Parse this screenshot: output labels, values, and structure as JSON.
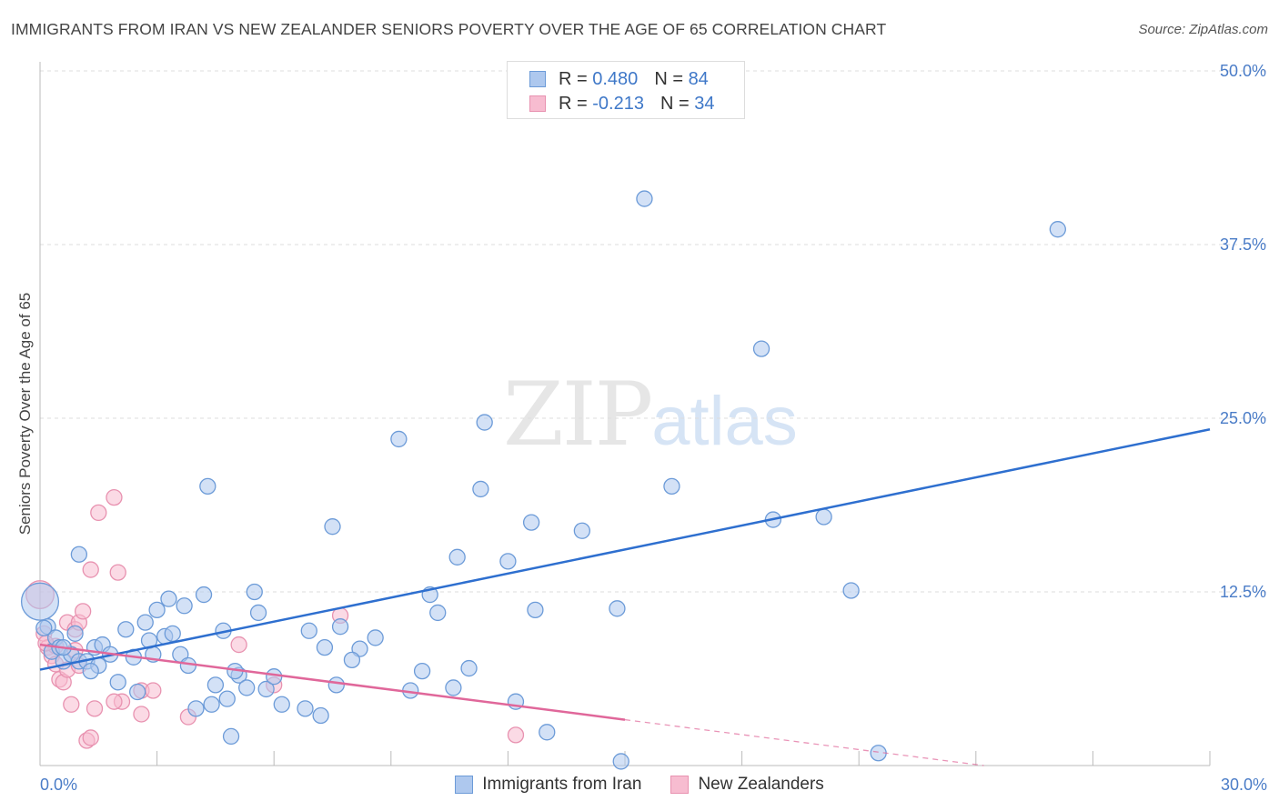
{
  "title": "IMMIGRANTS FROM IRAN VS NEW ZEALANDER SENIORS POVERTY OVER THE AGE OF 65 CORRELATION CHART",
  "source": "Source: ZipAtlas.com",
  "watermark": {
    "part1": "ZIP",
    "part2": "atlas"
  },
  "legend": {
    "rows": [
      {
        "r_label": "R =",
        "r_value": "0.480",
        "n_label": "N =",
        "n_value": "84",
        "fill": "#aec8ee",
        "stroke": "#6c9bd8"
      },
      {
        "r_label": "R =",
        "r_value": "-0.213",
        "n_label": "N =",
        "n_value": "34",
        "fill": "#f7bcd0",
        "stroke": "#e892b0"
      }
    ]
  },
  "colors": {
    "blue_fill": "rgba(174,200,238,0.55)",
    "blue_stroke": "#6c9bd8",
    "blue_line": "#2e6fcf",
    "pink_fill": "rgba(247,188,208,0.55)",
    "pink_stroke": "#e892b0",
    "pink_line": "#e0679a",
    "grid": "#dddddd",
    "tick_text": "#4a7cc7"
  },
  "chart_data": {
    "type": "scatter",
    "title": "IMMIGRANTS FROM IRAN VS NEW ZEALANDER SENIORS POVERTY OVER THE AGE OF 65 CORRELATION CHART",
    "xlabel": "",
    "ylabel": "Seniors Poverty Over the Age of 65",
    "xlim": [
      0,
      30
    ],
    "ylim": [
      0,
      50
    ],
    "x_tick_labels": [
      "0.0%",
      "30.0%"
    ],
    "y_ticks": [
      12.5,
      25.0,
      37.5,
      50.0
    ],
    "y_tick_labels": [
      "12.5%",
      "25.0%",
      "37.5%",
      "50.0%"
    ],
    "series": [
      {
        "name": "Immigrants from Iran",
        "r": 0.48,
        "n": 84,
        "trend": {
          "x0": 0,
          "y0": 6.9,
          "x1": 30,
          "y1": 24.2,
          "dashed_from": null
        },
        "points": [
          [
            0.0,
            11.8,
            2.4
          ],
          [
            0.2,
            10.0,
            1.0
          ],
          [
            0.3,
            8.2,
            1.0
          ],
          [
            0.4,
            9.2,
            1.0
          ],
          [
            0.5,
            8.5,
            1.0
          ],
          [
            0.6,
            7.5,
            1.0
          ],
          [
            0.8,
            8.0,
            1.0
          ],
          [
            0.9,
            9.5,
            1.0
          ],
          [
            1.0,
            7.5,
            1.0
          ],
          [
            1.2,
            7.5,
            1.0
          ],
          [
            1.4,
            8.5,
            1.0
          ],
          [
            1.5,
            7.2,
            1.0
          ],
          [
            1.6,
            8.7,
            1.0
          ],
          [
            1.8,
            8.0,
            1.0
          ],
          [
            1.0,
            15.2,
            1.0
          ],
          [
            2.0,
            6.0,
            1.0
          ],
          [
            2.2,
            9.8,
            1.0
          ],
          [
            2.5,
            5.3,
            1.0
          ],
          [
            2.7,
            10.3,
            1.0
          ],
          [
            2.9,
            8.0,
            1.0
          ],
          [
            3.0,
            11.2,
            1.0
          ],
          [
            3.2,
            9.3,
            1.0
          ],
          [
            3.4,
            9.5,
            1.0
          ],
          [
            3.6,
            8.0,
            1.0
          ],
          [
            3.8,
            7.2,
            1.0
          ],
          [
            4.0,
            4.1,
            1.0
          ],
          [
            4.2,
            12.3,
            1.0
          ],
          [
            4.4,
            4.4,
            1.0
          ],
          [
            4.5,
            5.8,
            1.0
          ],
          [
            4.7,
            9.7,
            1.0
          ],
          [
            4.8,
            4.8,
            1.0
          ],
          [
            4.9,
            2.1,
            1.0
          ],
          [
            5.1,
            6.5,
            1.0
          ],
          [
            5.3,
            5.6,
            1.0
          ],
          [
            5.5,
            12.5,
            1.0
          ],
          [
            5.6,
            11.0,
            1.0
          ],
          [
            4.3,
            20.1,
            1.0
          ],
          [
            6.2,
            4.4,
            1.0
          ],
          [
            6.8,
            4.1,
            1.0
          ],
          [
            6.9,
            9.7,
            1.0
          ],
          [
            7.2,
            3.6,
            1.0
          ],
          [
            7.3,
            8.5,
            1.0
          ],
          [
            7.6,
            5.8,
            1.0
          ],
          [
            7.7,
            10.0,
            1.0
          ],
          [
            8.2,
            8.4,
            1.0
          ],
          [
            7.5,
            17.2,
            1.0
          ],
          [
            8.6,
            9.2,
            1.0
          ],
          [
            9.2,
            23.5,
            1.0
          ],
          [
            9.5,
            5.4,
            1.0
          ],
          [
            10.0,
            12.3,
            1.0
          ],
          [
            10.2,
            11.0,
            1.0
          ],
          [
            10.6,
            5.6,
            1.0
          ],
          [
            10.7,
            15.0,
            1.0
          ],
          [
            11.0,
            7.0,
            1.0
          ],
          [
            11.3,
            19.9,
            1.0
          ],
          [
            11.4,
            24.7,
            1.0
          ],
          [
            12.0,
            14.7,
            1.0
          ],
          [
            12.6,
            17.5,
            1.0
          ],
          [
            12.7,
            11.2,
            1.0
          ],
          [
            13.0,
            2.4,
            1.0
          ],
          [
            13.9,
            16.9,
            1.0
          ],
          [
            14.9,
            0.3,
            1.0
          ],
          [
            14.8,
            11.3,
            1.0
          ],
          [
            15.5,
            40.8,
            1.0
          ],
          [
            16.2,
            20.1,
            1.0
          ],
          [
            18.5,
            30.0,
            1.0
          ],
          [
            18.8,
            17.7,
            1.0
          ],
          [
            20.1,
            17.9,
            1.0
          ],
          [
            20.8,
            12.6,
            1.0
          ],
          [
            21.5,
            0.9,
            1.0
          ],
          [
            26.1,
            38.6,
            1.0
          ],
          [
            0.1,
            9.9,
            1.0
          ],
          [
            0.6,
            8.5,
            1.0
          ],
          [
            1.3,
            6.8,
            1.0
          ],
          [
            2.4,
            7.8,
            1.0
          ],
          [
            3.3,
            12.0,
            1.0
          ],
          [
            3.7,
            11.5,
            1.0
          ],
          [
            5.0,
            6.8,
            1.0
          ],
          [
            5.8,
            5.5,
            1.0
          ],
          [
            6.0,
            6.4,
            1.0
          ],
          [
            8.0,
            7.6,
            1.0
          ],
          [
            9.8,
            6.8,
            1.0
          ],
          [
            12.2,
            4.6,
            1.0
          ],
          [
            2.8,
            9.0,
            1.0
          ]
        ]
      },
      {
        "name": "New Zealanders",
        "r": -0.213,
        "n": 34,
        "trend": {
          "x0": 0,
          "y0": 8.7,
          "x1": 15,
          "y1": 3.3,
          "dashed_from": 15,
          "dashed_to_x": 24.2,
          "dashed_to_y": 0.0
        },
        "points": [
          [
            0.0,
            12.3,
            1.8
          ],
          [
            0.1,
            9.5,
            1.0
          ],
          [
            0.2,
            8.5,
            1.0
          ],
          [
            0.3,
            7.9,
            1.0
          ],
          [
            0.4,
            8.6,
            1.0
          ],
          [
            0.5,
            6.2,
            1.0
          ],
          [
            0.6,
            6.0,
            1.0
          ],
          [
            0.7,
            10.3,
            1.0
          ],
          [
            0.8,
            4.4,
            1.0
          ],
          [
            0.9,
            9.8,
            1.0
          ],
          [
            1.0,
            10.3,
            1.0
          ],
          [
            1.1,
            11.1,
            1.0
          ],
          [
            1.2,
            1.8,
            1.0
          ],
          [
            1.3,
            14.1,
            1.0
          ],
          [
            1.4,
            4.1,
            1.0
          ],
          [
            1.5,
            18.2,
            1.0
          ],
          [
            1.9,
            19.3,
            1.0
          ],
          [
            2.0,
            13.9,
            1.0
          ],
          [
            2.1,
            4.6,
            1.0
          ],
          [
            2.6,
            5.4,
            1.0
          ],
          [
            2.6,
            3.7,
            1.0
          ],
          [
            2.9,
            5.4,
            1.0
          ],
          [
            3.8,
            3.5,
            1.0
          ],
          [
            5.1,
            8.7,
            1.0
          ],
          [
            6.0,
            5.8,
            1.0
          ],
          [
            7.7,
            10.8,
            1.0
          ],
          [
            12.2,
            2.2,
            1.0
          ],
          [
            1.3,
            2.0,
            1.0
          ],
          [
            0.4,
            7.3,
            1.0
          ],
          [
            0.7,
            6.9,
            1.0
          ],
          [
            1.0,
            7.2,
            1.0
          ],
          [
            1.9,
            4.6,
            1.0
          ],
          [
            0.15,
            8.8,
            1.0
          ],
          [
            0.9,
            8.3,
            1.0
          ]
        ]
      }
    ]
  }
}
